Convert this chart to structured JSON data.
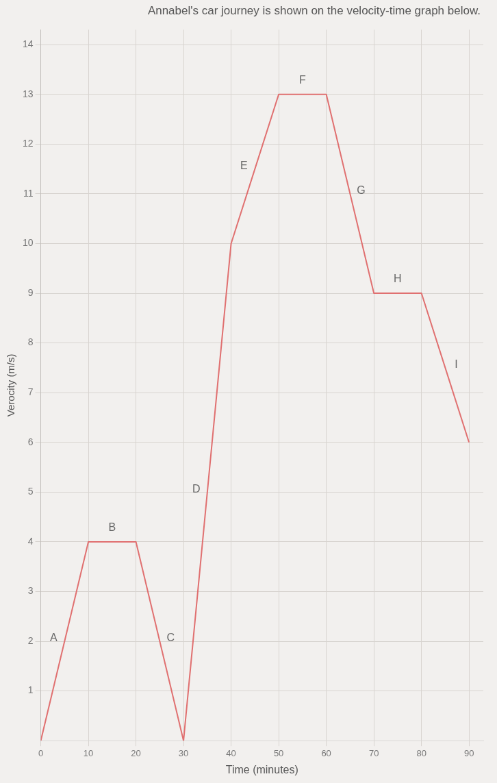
{
  "chart_data": {
    "type": "line",
    "title": "Annabel's car journey is shown on the velocity-time graph below.",
    "xlabel": "Time (minutes)",
    "ylabel": "Verocity (m/s)",
    "x": [
      0,
      10,
      20,
      30,
      40,
      50,
      60,
      70,
      80,
      90
    ],
    "values": [
      0,
      4,
      4,
      0,
      10,
      13,
      13,
      9,
      9,
      6
    ],
    "color": "#e07070",
    "marker": "none",
    "line_style": "solid",
    "grid": true,
    "legend": false,
    "xlim": [
      0,
      93
    ],
    "xticks": [
      0,
      10,
      20,
      30,
      40,
      50,
      60,
      70,
      80,
      90
    ],
    "ylim": [
      0,
      14.3
    ],
    "yticks": [
      1,
      2,
      3,
      4,
      5,
      6,
      7,
      8,
      9,
      10,
      11,
      12,
      13,
      14
    ],
    "annotations": [
      "A",
      "B",
      "C",
      "D",
      "E",
      "F",
      "G",
      "H",
      "I"
    ]
  }
}
